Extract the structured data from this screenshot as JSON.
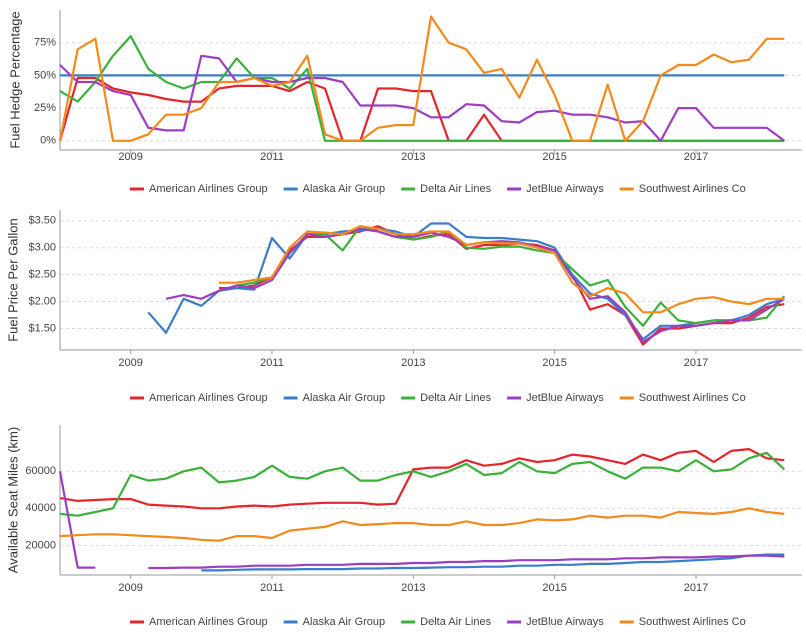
{
  "chart_data": [
    {
      "type": "line",
      "y_label": "Fuel Hedge Percentage",
      "x": [
        2008,
        2008.25,
        2008.5,
        2008.75,
        2009,
        2009.25,
        2009.5,
        2009.75,
        2010,
        2010.25,
        2010.5,
        2010.75,
        2011,
        2011.25,
        2011.5,
        2011.75,
        2012,
        2012.25,
        2012.5,
        2012.75,
        2013,
        2013.25,
        2013.5,
        2013.75,
        2014,
        2014.25,
        2014.5,
        2014.75,
        2015,
        2015.25,
        2015.5,
        2015.75,
        2016,
        2016.25,
        2016.5,
        2016.75,
        2017,
        2017.25,
        2017.5,
        2017.75,
        2018,
        2018.25
      ],
      "xlim": [
        2008,
        2018.5
      ],
      "xticks": [
        2009,
        2011,
        2013,
        2015,
        2017
      ],
      "ylim": [
        -7,
        100
      ],
      "yticks": [
        {
          "value": 0,
          "label": "0%"
        },
        {
          "value": 25,
          "label": "25%"
        },
        {
          "value": 50,
          "label": "50%"
        },
        {
          "value": 75,
          "label": "75%"
        }
      ],
      "grid": true,
      "series": [
        {
          "name": "American Airlines Group",
          "color": "#e3262b",
          "values": [
            0,
            48,
            48,
            40,
            37,
            35,
            32,
            30,
            30,
            40,
            42,
            42,
            42,
            38,
            45,
            40,
            0,
            0,
            40,
            40,
            38,
            38,
            0,
            0,
            20,
            0,
            0,
            0,
            0,
            0,
            0,
            0,
            0,
            0,
            0,
            0,
            0,
            0,
            0,
            0,
            0,
            0
          ]
        },
        {
          "name": "Alaska Air Group",
          "color": "#3a7dc9",
          "values": [
            50,
            50,
            50,
            50,
            50,
            50,
            50,
            50,
            50,
            50,
            50,
            50,
            50,
            50,
            50,
            50,
            50,
            50,
            50,
            50,
            50,
            50,
            50,
            50,
            50,
            50,
            50,
            50,
            50,
            50,
            50,
            50,
            50,
            50,
            50,
            50,
            50,
            50,
            50,
            50,
            50,
            50
          ]
        },
        {
          "name": "Delta Air Lines",
          "color": "#3bb03b",
          "values": [
            38,
            30,
            45,
            65,
            80,
            55,
            45,
            40,
            45,
            45,
            63,
            48,
            48,
            40,
            55,
            0,
            0,
            0,
            0,
            0,
            0,
            0,
            0,
            0,
            0,
            0,
            0,
            0,
            0,
            0,
            0,
            0,
            0,
            0,
            0,
            0,
            0,
            0,
            0,
            0,
            0,
            0
          ]
        },
        {
          "name": "JetBlue Airways",
          "color": "#9b3fc0",
          "values": [
            58,
            45,
            45,
            38,
            35,
            10,
            8,
            8,
            65,
            63,
            45,
            48,
            45,
            45,
            48,
            48,
            45,
            27,
            27,
            27,
            25,
            18,
            18,
            28,
            27,
            15,
            14,
            22,
            23,
            20,
            20,
            18,
            14,
            15,
            0,
            25,
            25,
            10,
            10,
            10,
            10,
            0
          ]
        },
        {
          "name": "Southwest Airlines Co",
          "color": "#f28a1c",
          "values": [
            0,
            70,
            78,
            0,
            0,
            5,
            20,
            20,
            25,
            45,
            45,
            48,
            42,
            45,
            65,
            5,
            0,
            0,
            10,
            12,
            12,
            95,
            75,
            70,
            52,
            55,
            33,
            62,
            35,
            0,
            0,
            43,
            0,
            15,
            50,
            58,
            58,
            66,
            60,
            62,
            78,
            78
          ]
        }
      ]
    },
    {
      "type": "line",
      "y_label": "Fuel Price Per Gallon",
      "x": [
        2008,
        2008.25,
        2008.5,
        2008.75,
        2009,
        2009.25,
        2009.5,
        2009.75,
        2010,
        2010.25,
        2010.5,
        2010.75,
        2011,
        2011.25,
        2011.5,
        2011.75,
        2012,
        2012.25,
        2012.5,
        2012.75,
        2013,
        2013.25,
        2013.5,
        2013.75,
        2014,
        2014.25,
        2014.5,
        2014.75,
        2015,
        2015.25,
        2015.5,
        2015.75,
        2016,
        2016.25,
        2016.5,
        2016.75,
        2017,
        2017.25,
        2017.5,
        2017.75,
        2018,
        2018.25
      ],
      "xlim": [
        2008,
        2018.5
      ],
      "xticks": [
        2009,
        2011,
        2013,
        2015,
        2017
      ],
      "ylim": [
        1.1,
        3.7
      ],
      "yticks": [
        {
          "value": 1.5,
          "label": "$1.50"
        },
        {
          "value": 2,
          "label": "$2.00"
        },
        {
          "value": 2.5,
          "label": "$2.50"
        },
        {
          "value": 3,
          "label": "$3.00"
        },
        {
          "value": 3.5,
          "label": "$3.50"
        }
      ],
      "grid": true,
      "series": [
        {
          "name": "American Airlines Group",
          "color": "#e3262b",
          "values": [
            null,
            null,
            null,
            null,
            null,
            null,
            null,
            null,
            null,
            2.25,
            2.25,
            2.3,
            2.45,
            2.95,
            3.2,
            3.2,
            3.25,
            3.3,
            3.4,
            3.25,
            3.15,
            3.22,
            3.25,
            2.98,
            3.05,
            3.05,
            3.08,
            3.05,
            2.95,
            2.5,
            1.85,
            1.95,
            1.75,
            1.2,
            1.5,
            1.5,
            1.55,
            1.6,
            1.6,
            1.7,
            1.9,
            1.95
          ]
        },
        {
          "name": "Alaska Air Group",
          "color": "#3a7dc9",
          "values": [
            null,
            null,
            null,
            null,
            null,
            1.8,
            1.42,
            2.05,
            1.92,
            2.2,
            2.25,
            2.22,
            3.18,
            2.8,
            3.25,
            3.25,
            3.3,
            3.32,
            3.35,
            3.3,
            3.2,
            3.45,
            3.45,
            3.2,
            3.18,
            3.18,
            3.15,
            3.12,
            3.0,
            2.5,
            2.15,
            2.05,
            1.75,
            1.3,
            1.55,
            1.55,
            1.6,
            1.65,
            1.65,
            1.75,
            1.95,
            2.05
          ]
        },
        {
          "name": "Delta Air Lines",
          "color": "#3bb03b",
          "values": [
            null,
            null,
            null,
            null,
            null,
            null,
            null,
            null,
            null,
            null,
            2.3,
            2.35,
            2.45,
            2.9,
            3.25,
            3.25,
            2.95,
            3.4,
            3.3,
            3.2,
            3.15,
            3.2,
            3.3,
            3.0,
            2.98,
            3.02,
            3.02,
            2.95,
            2.9,
            2.6,
            2.3,
            2.4,
            1.9,
            1.55,
            1.98,
            1.65,
            1.6,
            1.65,
            1.65,
            1.65,
            1.7,
            2.1
          ]
        },
        {
          "name": "JetBlue Airways",
          "color": "#9b3fc0",
          "values": [
            null,
            null,
            null,
            null,
            null,
            null,
            2.05,
            2.12,
            2.05,
            2.2,
            2.3,
            2.25,
            2.4,
            2.9,
            3.25,
            3.2,
            3.25,
            3.35,
            3.3,
            3.2,
            3.2,
            3.28,
            3.2,
            3.05,
            3.1,
            3.12,
            3.1,
            3.02,
            2.95,
            2.45,
            2.05,
            2.1,
            1.8,
            1.25,
            1.45,
            1.55,
            1.55,
            1.6,
            1.65,
            1.65,
            1.85,
            2.05
          ]
        },
        {
          "name": "Southwest Airlines Co",
          "color": "#f28a1c",
          "values": [
            null,
            null,
            null,
            null,
            null,
            null,
            null,
            null,
            null,
            2.35,
            2.35,
            2.4,
            2.45,
            3.0,
            3.3,
            3.28,
            3.25,
            3.4,
            3.35,
            3.25,
            3.25,
            3.3,
            3.3,
            3.05,
            3.1,
            3.08,
            3.08,
            3.0,
            2.9,
            2.35,
            2.1,
            2.25,
            2.15,
            1.8,
            1.8,
            1.95,
            2.05,
            2.08,
            2.0,
            1.95,
            2.05,
            2.05
          ]
        }
      ]
    },
    {
      "type": "line",
      "y_label": "Available Seat Miles (km)",
      "x": [
        2008,
        2008.25,
        2008.5,
        2008.75,
        2009,
        2009.25,
        2009.5,
        2009.75,
        2010,
        2010.25,
        2010.5,
        2010.75,
        2011,
        2011.25,
        2011.5,
        2011.75,
        2012,
        2012.25,
        2012.5,
        2012.75,
        2013,
        2013.25,
        2013.5,
        2013.75,
        2014,
        2014.25,
        2014.5,
        2014.75,
        2015,
        2015.25,
        2015.5,
        2015.75,
        2016,
        2016.25,
        2016.5,
        2016.75,
        2017,
        2017.25,
        2017.5,
        2017.75,
        2018,
        2018.25
      ],
      "xlim": [
        2008,
        2018.5
      ],
      "xticks": [
        2009,
        2011,
        2013,
        2015,
        2017
      ],
      "ylim": [
        4000,
        85000
      ],
      "yticks": [
        20000,
        40000,
        60000
      ],
      "grid": true,
      "series": [
        {
          "name": "American Airlines Group",
          "color": "#e3262b",
          "values": [
            45500,
            44000,
            44500,
            45000,
            45000,
            42000,
            41500,
            41000,
            40000,
            40000,
            41000,
            41500,
            41000,
            42000,
            42500,
            43000,
            43000,
            43000,
            42000,
            42500,
            61000,
            62000,
            62000,
            66000,
            63000,
            64000,
            67000,
            65000,
            66000,
            69000,
            68000,
            66000,
            64000,
            69000,
            66000,
            70000,
            71000,
            65000,
            71000,
            72000,
            67000,
            66000
          ]
        },
        {
          "name": "Alaska Air Group",
          "color": "#3a7dc9",
          "values": [
            null,
            null,
            null,
            null,
            null,
            null,
            null,
            null,
            6500,
            6500,
            6800,
            7000,
            7000,
            7000,
            7200,
            7200,
            7200,
            7500,
            7500,
            7800,
            7800,
            8000,
            8200,
            8200,
            8500,
            8500,
            9000,
            9000,
            9500,
            9500,
            10000,
            10000,
            10500,
            11000,
            11000,
            11500,
            12000,
            12500,
            13000,
            14500,
            15000,
            15000
          ]
        },
        {
          "name": "Delta Air Lines",
          "color": "#3bb03b",
          "values": [
            37000,
            36000,
            38000,
            40000,
            58000,
            55000,
            56000,
            60000,
            62000,
            54000,
            55000,
            57000,
            63000,
            57000,
            56000,
            60000,
            62000,
            55000,
            55000,
            58000,
            60000,
            57000,
            60000,
            64000,
            58000,
            59000,
            65000,
            60000,
            59000,
            64000,
            65000,
            60000,
            56000,
            62000,
            62000,
            60000,
            66000,
            60000,
            61000,
            67000,
            70000,
            61000
          ]
        },
        {
          "name": "JetBlue Airways",
          "color": "#9b3fc0",
          "values": [
            60000,
            8000,
            8000,
            null,
            null,
            7800,
            7800,
            8000,
            8000,
            8500,
            8500,
            9000,
            9000,
            9000,
            9500,
            9500,
            9500,
            10000,
            10000,
            10000,
            10500,
            10500,
            11000,
            11000,
            11500,
            11500,
            12000,
            12000,
            12000,
            12500,
            12500,
            12500,
            13000,
            13000,
            13500,
            13500,
            13500,
            14000,
            14000,
            14500,
            14500,
            14000
          ]
        },
        {
          "name": "Southwest Airlines Co",
          "color": "#f28a1c",
          "values": [
            25000,
            25500,
            26000,
            26000,
            25500,
            25000,
            24500,
            24000,
            23000,
            22500,
            25000,
            25000,
            24000,
            28000,
            29000,
            30000,
            33000,
            31000,
            31500,
            32000,
            32000,
            31000,
            31000,
            33000,
            31000,
            31000,
            32000,
            34000,
            33500,
            34000,
            36000,
            35000,
            36000,
            36000,
            35000,
            38000,
            37500,
            37000,
            38000,
            40000,
            38000,
            37000
          ]
        }
      ]
    }
  ]
}
